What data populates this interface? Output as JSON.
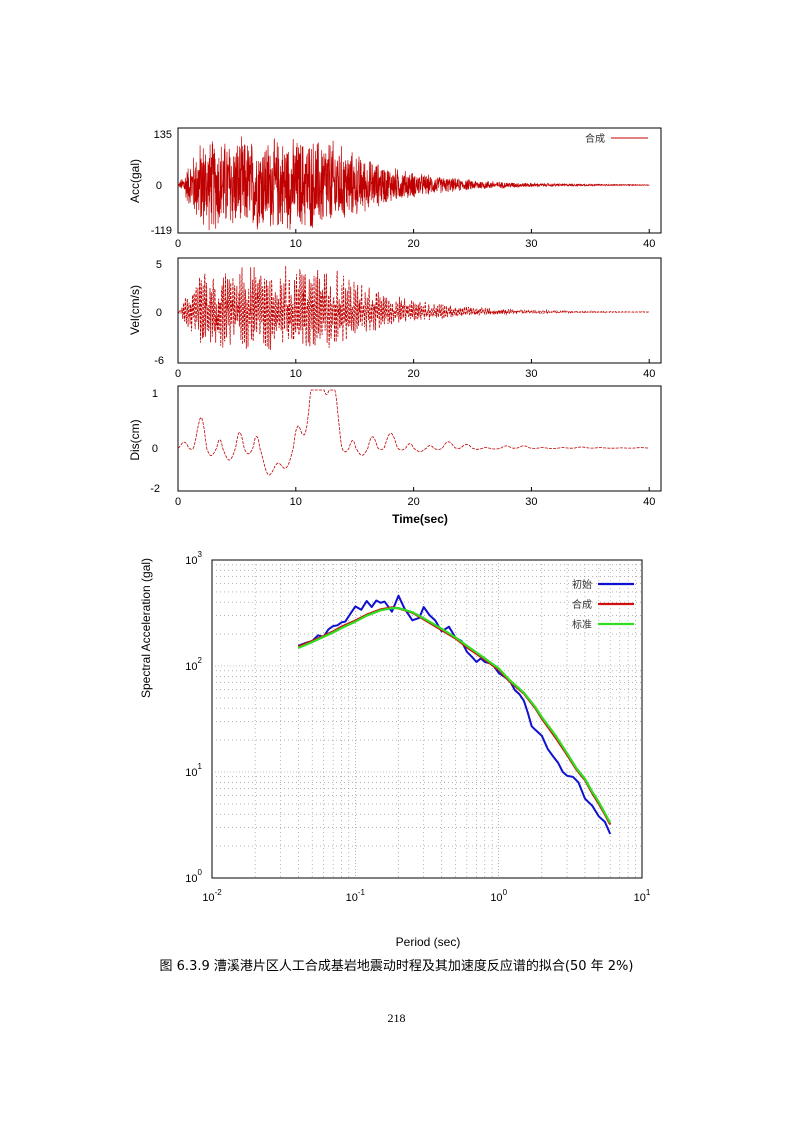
{
  "caption": "图 6.3.9 漕溪港片区人工合成基岩地震动时程及其加速度反应谱的拟合(50 年 2%)",
  "page_number": "218",
  "chart_data": [
    {
      "type": "line",
      "ylabel": "Acc(gal)",
      "xlabel": "",
      "xlim": [
        0,
        40
      ],
      "ylim": [
        -119,
        135
      ],
      "x_ticks": [
        "0",
        "10",
        "20",
        "30",
        "40"
      ],
      "y_ticks": [
        "135",
        "0",
        "-119"
      ],
      "legend": "top-right",
      "series": [
        {
          "name": "合成",
          "color": "#c00000"
        }
      ],
      "envelope": {
        "peak": 135,
        "trough": -119,
        "duration_sec": 40
      }
    },
    {
      "type": "line",
      "ylabel": "Vel(cm/s)",
      "xlabel": "",
      "xlim": [
        0,
        40
      ],
      "ylim": [
        -6,
        5
      ],
      "x_ticks": [
        "0",
        "10",
        "20",
        "30",
        "40"
      ],
      "y_ticks": [
        "5",
        "0",
        "-6"
      ],
      "series": [
        {
          "color": "#c00000"
        }
      ]
    },
    {
      "type": "line",
      "ylabel": "Dis(cm)",
      "xlabel": "Time(sec)",
      "xlim": [
        0,
        40
      ],
      "ylim": [
        -2,
        1
      ],
      "x_ticks": [
        "0",
        "10",
        "20",
        "30",
        "40"
      ],
      "y_ticks": [
        "1",
        "0",
        "-2"
      ],
      "series": [
        {
          "color": "#c00000"
        }
      ]
    },
    {
      "type": "line",
      "xscale": "log",
      "yscale": "log",
      "xlabel": "Period (sec)",
      "ylabel": "Spectral Acceleration (gal)",
      "xlim": [
        0.01,
        10
      ],
      "ylim": [
        1,
        1000
      ],
      "x_ticks": [
        {
          "base": "10",
          "exp": "-2"
        },
        {
          "base": "10",
          "exp": "-1"
        },
        {
          "base": "10",
          "exp": "0"
        },
        {
          "base": "10",
          "exp": "1"
        }
      ],
      "y_ticks": [
        {
          "base": "10",
          "exp": "3"
        },
        {
          "base": "10",
          "exp": "2"
        },
        {
          "base": "10",
          "exp": "1"
        },
        {
          "base": "10",
          "exp": "0"
        }
      ],
      "grid": true,
      "legend": "top-right",
      "series": [
        {
          "name": "初始",
          "color": "#1010d0",
          "x": [
            0.04,
            0.045,
            0.05,
            0.055,
            0.06,
            0.065,
            0.07,
            0.075,
            0.08,
            0.085,
            0.09,
            0.1,
            0.11,
            0.12,
            0.13,
            0.14,
            0.15,
            0.16,
            0.18,
            0.2,
            0.22,
            0.25,
            0.28,
            0.3,
            0.33,
            0.36,
            0.4,
            0.45,
            0.5,
            0.55,
            0.6,
            0.65,
            0.7,
            0.75,
            0.8,
            0.9,
            1.0,
            1.1,
            1.2,
            1.3,
            1.4,
            1.5,
            1.6,
            1.7,
            1.8,
            2.0,
            2.2,
            2.4,
            2.6,
            2.8,
            3.0,
            3.3,
            3.6,
            4.0,
            4.5,
            5.0,
            5.5,
            6.0
          ],
          "y": [
            155,
            165,
            172,
            195,
            188,
            222,
            238,
            242,
            258,
            262,
            295,
            365,
            340,
            410,
            360,
            415,
            395,
            405,
            325,
            460,
            350,
            270,
            285,
            360,
            300,
            270,
            212,
            235,
            185,
            172,
            136,
            122,
            109,
            118,
            109,
            105,
            86,
            79,
            72,
            59,
            54,
            47,
            36,
            27,
            25,
            22,
            16.5,
            14,
            12.2,
            10,
            9.2,
            9,
            8,
            5.6,
            4.8,
            3.8,
            3.4,
            2.6
          ]
        },
        {
          "name": "合成",
          "color": "#d01010",
          "x": [
            0.04,
            0.05,
            0.06,
            0.07,
            0.08,
            0.1,
            0.12,
            0.15,
            0.18,
            0.2,
            0.25,
            0.3,
            0.4,
            0.5,
            0.6,
            0.7,
            0.8,
            1.0,
            1.2,
            1.5,
            1.8,
            2.0,
            2.5,
            3.0,
            3.5,
            4.0,
            4.5,
            5.0,
            5.5,
            6.0
          ],
          "y": [
            152,
            172,
            192,
            212,
            235,
            268,
            305,
            342,
            358,
            350,
            318,
            276,
            218,
            182,
            150,
            130,
            115,
            92,
            71,
            55,
            40,
            32,
            21,
            14.5,
            10.5,
            8.4,
            6.3,
            5,
            4,
            3.2
          ]
        },
        {
          "name": "标准",
          "color": "#30dd20",
          "x": [
            0.04,
            0.05,
            0.06,
            0.07,
            0.08,
            0.1,
            0.12,
            0.15,
            0.18,
            0.2,
            0.25,
            0.3,
            0.4,
            0.5,
            0.6,
            0.7,
            0.8,
            1.0,
            1.2,
            1.5,
            1.8,
            2.0,
            2.5,
            3.0,
            3.5,
            4.0,
            4.5,
            5.0,
            5.5,
            6.0
          ],
          "y": [
            148,
            168,
            188,
            207,
            228,
            262,
            298,
            335,
            352,
            352,
            322,
            282,
            225,
            186,
            155,
            134,
            118,
            95,
            73,
            56,
            41,
            33,
            22,
            15,
            10.8,
            8.6,
            6.5,
            5.2,
            4.1,
            3.3
          ]
        }
      ]
    }
  ]
}
